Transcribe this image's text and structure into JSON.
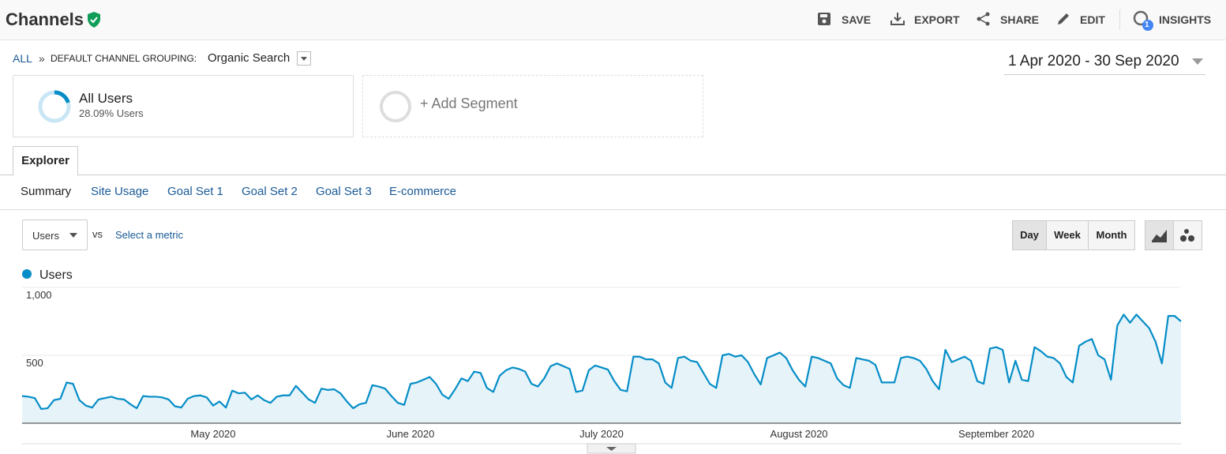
{
  "header": {
    "title": "Channels",
    "actions": [
      "SAVE",
      "EXPORT",
      "SHARE",
      "EDIT",
      "INSIGHTS"
    ],
    "insights_badge": "1"
  },
  "breadcrumb": {
    "root": "ALL",
    "separator": "»",
    "grouping": "DEFAULT CHANNEL GROUPING:",
    "value": "Organic Search"
  },
  "date_range": "1 Apr 2020 - 30 Sep 2020",
  "segments": [
    {
      "name": "All Users",
      "detail": "28.09% Users"
    },
    {
      "name": "+ Add Segment"
    }
  ],
  "tab": "Explorer",
  "subtabs": [
    "Summary",
    "Site Usage",
    "Goal Set 1",
    "Goal Set 2",
    "Goal Set 3",
    "E-commerce"
  ],
  "metric": {
    "primary": "Users",
    "vs": "vs",
    "secondary": "Select a metric"
  },
  "granularity": [
    "Day",
    "Week",
    "Month"
  ],
  "chart_data": {
    "type": "line",
    "ylim": [
      0,
      1000
    ],
    "yticks": [
      500,
      {
        "value": 1000,
        "label": "1,000"
      }
    ],
    "grid": true,
    "categories": [
      null,
      null,
      null,
      null,
      null,
      null,
      null,
      null,
      null,
      null,
      null,
      null,
      null,
      null,
      null,
      null,
      null,
      null,
      null,
      null,
      null,
      null,
      null,
      null,
      null,
      null,
      null,
      null,
      null,
      null,
      "May 2020",
      null,
      null,
      null,
      null,
      null,
      null,
      null,
      null,
      null,
      null,
      null,
      null,
      null,
      null,
      null,
      null,
      null,
      null,
      null,
      null,
      null,
      null,
      null,
      null,
      null,
      null,
      null,
      null,
      null,
      null,
      "June 2020",
      null,
      null,
      null,
      null,
      null,
      null,
      null,
      null,
      null,
      null,
      null,
      null,
      null,
      null,
      null,
      null,
      null,
      null,
      null,
      null,
      null,
      null,
      null,
      null,
      null,
      null,
      null,
      null,
      null,
      "July 2020",
      null,
      null,
      null,
      null,
      null,
      null,
      null,
      null,
      null,
      null,
      null,
      null,
      null,
      null,
      null,
      null,
      null,
      null,
      null,
      null,
      null,
      null,
      null,
      null,
      null,
      null,
      null,
      null,
      null,
      null,
      "August 2020",
      null,
      null,
      null,
      null,
      null,
      null,
      null,
      null,
      null,
      null,
      null,
      null,
      null,
      null,
      null,
      null,
      null,
      null,
      null,
      null,
      null,
      null,
      null,
      null,
      null,
      null,
      null,
      null,
      null,
      null,
      "September 2020",
      null,
      null,
      null,
      null,
      null,
      null,
      null,
      null,
      null,
      null,
      null,
      null,
      null,
      null,
      null,
      null,
      null,
      null,
      null,
      null,
      null,
      null,
      null,
      null,
      null,
      null,
      null,
      null,
      null
    ],
    "series": [
      {
        "name": "Users",
        "color": "#058dc7",
        "values": [
          200,
          195,
          185,
          105,
          110,
          170,
          180,
          300,
          290,
          170,
          130,
          115,
          175,
          185,
          195,
          180,
          175,
          140,
          110,
          200,
          195,
          195,
          190,
          175,
          125,
          115,
          180,
          200,
          205,
          190,
          130,
          160,
          115,
          240,
          220,
          225,
          175,
          205,
          170,
          150,
          195,
          205,
          205,
          275,
          225,
          175,
          150,
          255,
          245,
          250,
          220,
          160,
          110,
          140,
          150,
          280,
          270,
          255,
          200,
          150,
          135,
          290,
          300,
          320,
          340,
          290,
          210,
          180,
          250,
          330,
          310,
          380,
          370,
          260,
          230,
          350,
          390,
          410,
          400,
          380,
          290,
          270,
          330,
          420,
          440,
          420,
          400,
          230,
          240,
          390,
          425,
          410,
          395,
          310,
          245,
          235,
          490,
          490,
          470,
          470,
          440,
          300,
          260,
          480,
          490,
          460,
          450,
          370,
          290,
          260,
          500,
          510,
          490,
          500,
          450,
          360,
          285,
          480,
          500,
          520,
          480,
          390,
          320,
          270,
          490,
          480,
          460,
          440,
          330,
          280,
          260,
          480,
          470,
          460,
          430,
          300,
          300,
          300,
          480,
          490,
          480,
          460,
          400,
          310,
          250,
          540,
          450,
          470,
          490,
          460,
          310,
          290,
          550,
          560,
          540,
          300,
          460,
          320,
          310,
          560,
          530,
          490,
          480,
          440,
          340,
          300,
          570,
          600,
          620,
          500,
          470,
          320,
          720,
          800,
          740,
          800,
          750,
          700,
          600,
          440,
          790,
          790,
          750
        ]
      }
    ]
  }
}
